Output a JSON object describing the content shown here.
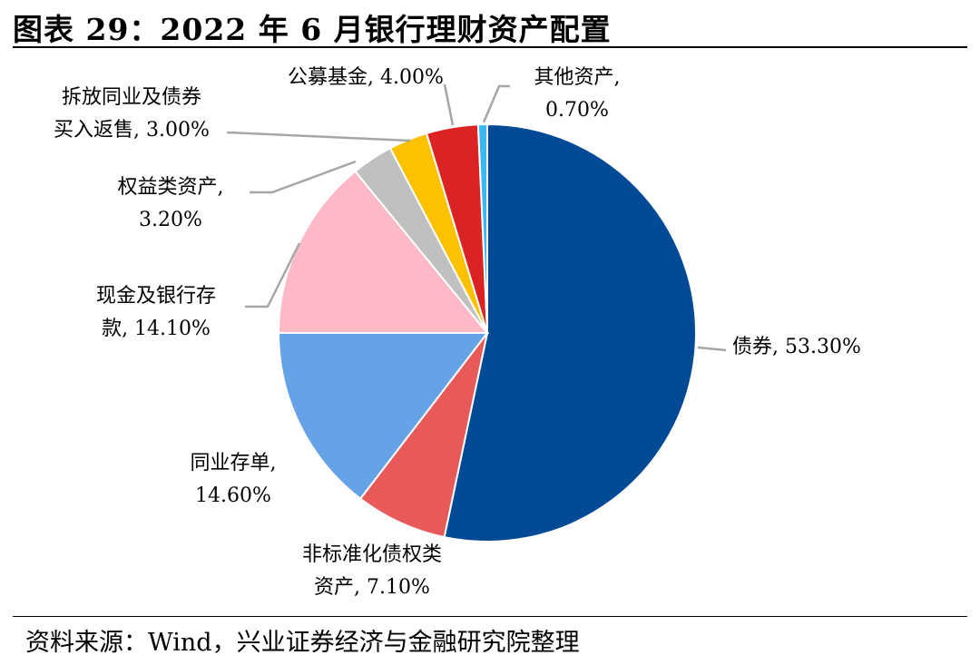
{
  "header": {
    "title": "图表 29：2022 年 6 月银行理财资产配置"
  },
  "footer": {
    "source": "资料来源：Wind，兴业证券经济与金融研究院整理"
  },
  "chart_data": {
    "type": "pie",
    "slices": [
      {
        "name": "债券",
        "value": 53.3,
        "label_lines": [
          "债券, 53.30%"
        ],
        "color": "#024A95"
      },
      {
        "name": "非标准化债权类资产",
        "value": 7.1,
        "label_lines": [
          "非标准化债权类",
          "资产, 7.10%"
        ],
        "color": "#E85A5A"
      },
      {
        "name": "同业存单",
        "value": 14.6,
        "label_lines": [
          "同业存单,",
          "14.60%"
        ],
        "color": "#65A2E6"
      },
      {
        "name": "现金及银行存款",
        "value": 14.1,
        "label_lines": [
          "现金及银行存",
          "款, 14.10%"
        ],
        "color": "#FDB9C6"
      },
      {
        "name": "权益类资产",
        "value": 3.2,
        "label_lines": [
          "权益类资产,",
          "3.20%"
        ],
        "color": "#C0C0C0"
      },
      {
        "name": "拆放同业及债券买入返售",
        "value": 3.0,
        "label_lines": [
          "拆放同业及债券",
          "买入返售, 3.00%"
        ],
        "color": "#FDC100"
      },
      {
        "name": "公募基金",
        "value": 4.0,
        "label_lines": [
          "公募基金, 4.00%"
        ],
        "color": "#DC2323"
      },
      {
        "name": "其他资产",
        "value": 0.7,
        "label_lines": [
          "其他资产,",
          "0.70%"
        ],
        "color": "#3BB8F2"
      }
    ],
    "start": "12 o'clock",
    "direction": "clockwise"
  }
}
